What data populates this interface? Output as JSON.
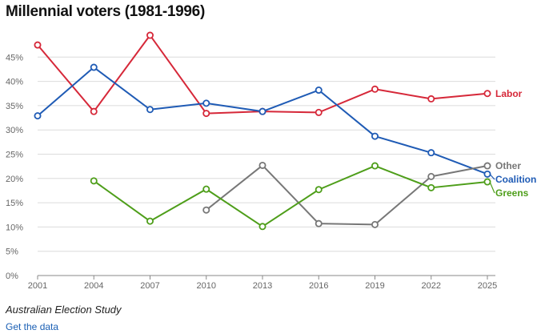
{
  "chart_data": {
    "type": "line",
    "title": "Millennial voters (1981-1996)",
    "xlabel": "",
    "ylabel": "",
    "x": [
      2001,
      2004,
      2007,
      2010,
      2013,
      2016,
      2019,
      2022,
      2025
    ],
    "ylim": [
      0,
      50
    ],
    "yticks": [
      0,
      5,
      10,
      15,
      20,
      25,
      30,
      35,
      40,
      45
    ],
    "ytick_suffix": "%",
    "grid": true,
    "legend": "inline labels at right end of each line",
    "series": [
      {
        "name": "Labor",
        "color": "#d62839",
        "values": [
          47.5,
          33.8,
          49.5,
          33.4,
          33.8,
          33.6,
          38.4,
          36.4,
          37.5
        ]
      },
      {
        "name": "Coalition",
        "color": "#1f5bb5",
        "values": [
          32.9,
          42.9,
          34.2,
          35.5,
          33.8,
          38.2,
          28.7,
          25.3,
          20.9
        ]
      },
      {
        "name": "Other",
        "color": "#777777",
        "values": [
          null,
          null,
          null,
          13.5,
          22.7,
          10.7,
          10.5,
          20.4,
          22.6
        ]
      },
      {
        "name": "Greens",
        "color": "#4e9e1a",
        "values": [
          null,
          19.5,
          11.2,
          17.8,
          10.1,
          17.7,
          22.6,
          18.1,
          19.3
        ]
      }
    ]
  },
  "source": "Australian Election Study",
  "get_data_label": "Get the data"
}
